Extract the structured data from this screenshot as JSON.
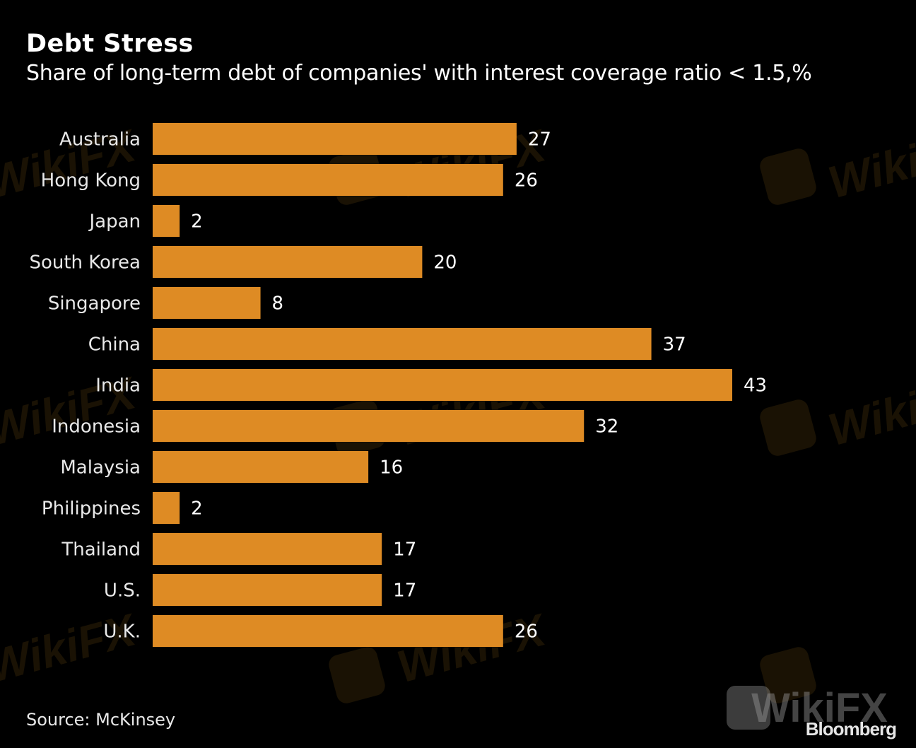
{
  "header": {
    "title": "Debt Stress",
    "subtitle": "Share of long-term debt of companies' with interest coverage ratio < 1.5,%"
  },
  "footer": {
    "source": "Source: McKinsey",
    "brand": "Bloomberg"
  },
  "watermark": {
    "text": "WikiFX"
  },
  "colors": {
    "background": "#000000",
    "bar": "#de8b24",
    "text": "#ffffff"
  },
  "chart_data": {
    "type": "bar",
    "orientation": "horizontal",
    "title": "Debt Stress",
    "subtitle": "Share of long-term debt of companies' with interest coverage ratio < 1.5,%",
    "xlabel": "",
    "ylabel": "",
    "categories": [
      "Australia",
      "Hong Kong",
      "Japan",
      "South Korea",
      "Singapore",
      "China",
      "India",
      "Indonesia",
      "Malaysia",
      "Philippines",
      "Thailand",
      "U.S.",
      "U.K."
    ],
    "values": [
      27,
      26,
      2,
      20,
      8,
      37,
      43,
      32,
      16,
      2,
      17,
      17,
      26
    ],
    "xlim": [
      0,
      43
    ],
    "grid": false,
    "legend": "none",
    "data_labels": true
  }
}
